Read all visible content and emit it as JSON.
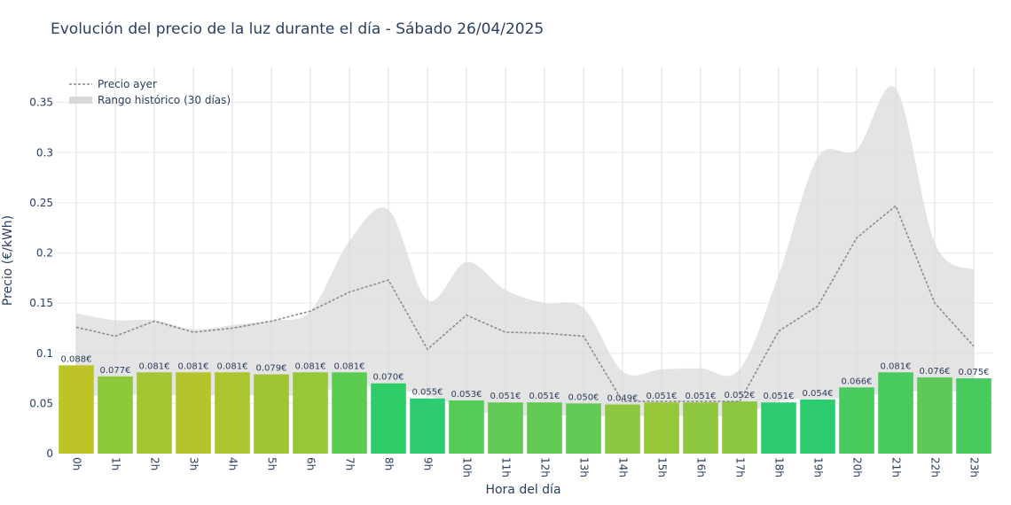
{
  "chart_data": {
    "type": "bar",
    "title": "Evolución del precio de la luz durante el día - Sábado 26/04/2025",
    "xlabel": "Hora del día",
    "ylabel": "Precio (€/kWh)",
    "ylim": [
      0,
      0.385
    ],
    "yticks": [
      0,
      0.05,
      0.1,
      0.15,
      0.2,
      0.25,
      0.3,
      0.35
    ],
    "ytick_labels": [
      "0",
      "0.05",
      "0.1",
      "0.15",
      "0.2",
      "0.25",
      "0.3",
      "0.35"
    ],
    "categories": [
      "0h",
      "1h",
      "2h",
      "3h",
      "4h",
      "5h",
      "6h",
      "7h",
      "8h",
      "9h",
      "10h",
      "11h",
      "12h",
      "13h",
      "14h",
      "15h",
      "16h",
      "17h",
      "18h",
      "19h",
      "20h",
      "21h",
      "22h",
      "23h"
    ],
    "series": [
      {
        "name": "",
        "kind": "bar",
        "values": [
          0.088,
          0.077,
          0.081,
          0.081,
          0.081,
          0.079,
          0.081,
          0.081,
          0.07,
          0.055,
          0.053,
          0.051,
          0.051,
          0.05,
          0.049,
          0.051,
          0.051,
          0.052,
          0.051,
          0.054,
          0.066,
          0.081,
          0.076,
          0.075
        ],
        "labels": [
          "0.088€",
          "0.077€",
          "0.081€",
          "0.081€",
          "0.081€",
          "0.079€",
          "0.081€",
          "0.081€",
          "0.070€",
          "0.055€",
          "0.053€",
          "0.051€",
          "0.051€",
          "0.050€",
          "0.049€",
          "0.051€",
          "0.051€",
          "0.052€",
          "0.051€",
          "0.054€",
          "0.066€",
          "0.081€",
          "0.076€",
          "0.075€"
        ],
        "colors": [
          "#bcc428",
          "#8dc83a",
          "#a4c532",
          "#b6c42c",
          "#aac530",
          "#a0c534",
          "#96c737",
          "#5bcc52",
          "#2fcd6a",
          "#2ecc71",
          "#55cb58",
          "#62c955",
          "#62c955",
          "#62c955",
          "#8dc73f",
          "#96c739",
          "#8dc73f",
          "#8dc73f",
          "#2ecc71",
          "#2ecc71",
          "#48ca5f",
          "#48ca5f",
          "#5ec956",
          "#48ca5f"
        ]
      },
      {
        "name": "Precio ayer",
        "kind": "line",
        "values": [
          0.126,
          0.117,
          0.132,
          0.121,
          0.125,
          0.132,
          0.142,
          0.161,
          0.173,
          0.104,
          0.138,
          0.121,
          0.12,
          0.117,
          0.052,
          0.052,
          0.052,
          0.052,
          0.122,
          0.147,
          0.215,
          0.247,
          0.15,
          0.107
        ]
      },
      {
        "name": "Rango histórico (30 días)",
        "kind": "range",
        "upper": [
          0.14,
          0.133,
          0.133,
          0.124,
          0.128,
          0.133,
          0.142,
          0.212,
          0.243,
          0.153,
          0.191,
          0.163,
          0.15,
          0.145,
          0.082,
          0.084,
          0.085,
          0.084,
          0.178,
          0.295,
          0.303,
          0.364,
          0.21,
          0.183
        ],
        "lower": [
          0.058,
          0.058,
          0.06,
          0.057,
          0.059,
          0.057,
          0.059,
          0.068,
          0.065,
          0.058,
          0.045,
          0.038,
          0.038,
          0.038,
          0.037,
          0.038,
          0.038,
          0.038,
          0.052,
          0.055,
          0.056,
          0.062,
          0.062,
          0.062
        ]
      }
    ],
    "colors": {
      "line": "#8c8c8c",
      "range_fill": "#d9d9d9",
      "grid": "#dcdcdc",
      "text": "#2a3f5f"
    },
    "grid": true,
    "legend_position": "top-left"
  }
}
